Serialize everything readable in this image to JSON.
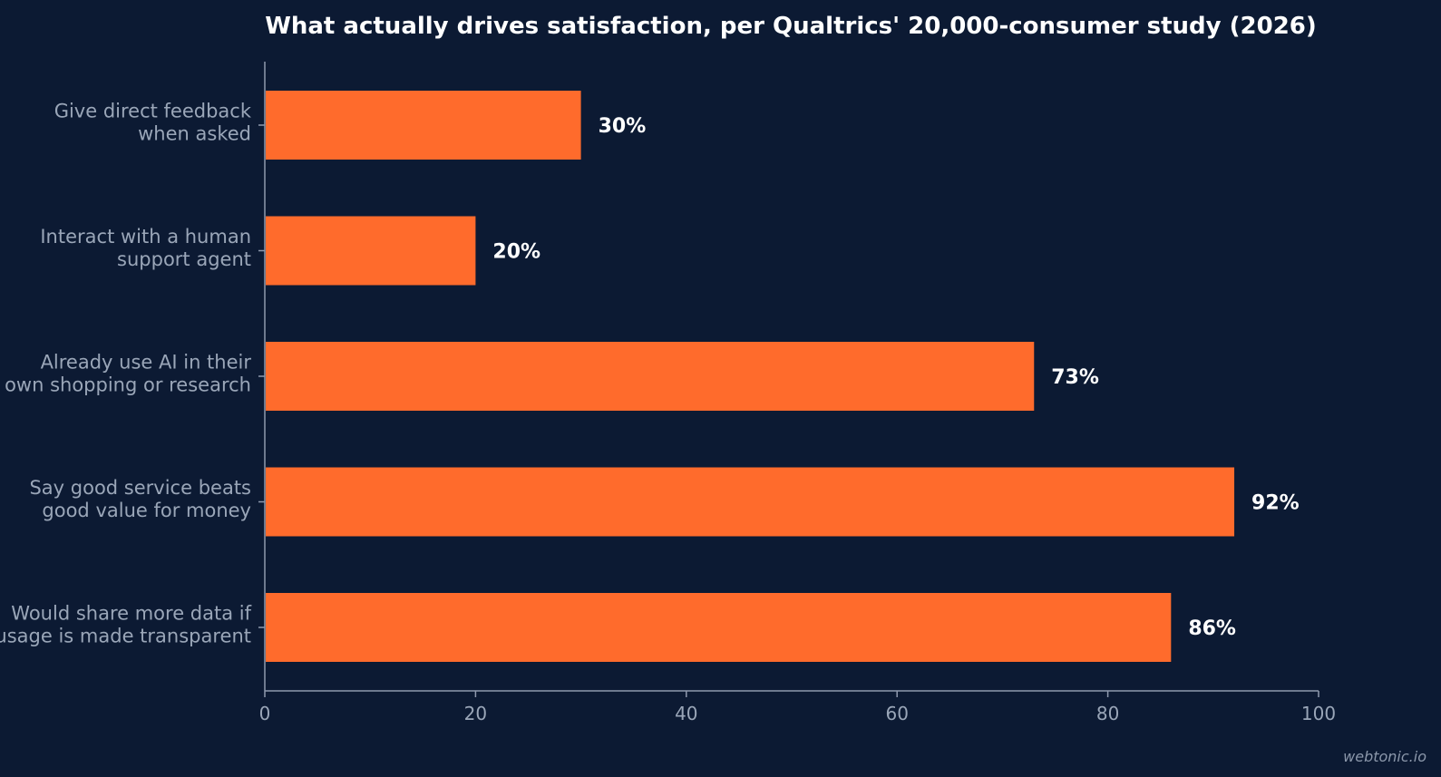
{
  "chart_data": {
    "type": "bar",
    "orientation": "horizontal",
    "title": "What actually drives satisfaction, per Qualtrics' 20,000-consumer study (2026)",
    "xlabel": "",
    "ylabel": "",
    "xlim": [
      0,
      100
    ],
    "x_ticks": [
      0,
      20,
      40,
      60,
      80,
      100
    ],
    "grid": false,
    "categories": [
      [
        "Give direct feedback",
        "when asked"
      ],
      [
        "Interact with a human",
        "support agent"
      ],
      [
        "Already use AI in their",
        "own shopping or research"
      ],
      [
        "Say good service beats",
        "good value for money"
      ],
      [
        "Would share more data if",
        "usage is made transparent"
      ]
    ],
    "values": [
      30,
      20,
      73,
      92,
      86
    ],
    "value_labels": [
      "30%",
      "20%",
      "73%",
      "92%",
      "86%"
    ],
    "bar_color": "#ff6b2c",
    "background_color": "#0c1a33"
  },
  "watermark": "webtonic.io"
}
